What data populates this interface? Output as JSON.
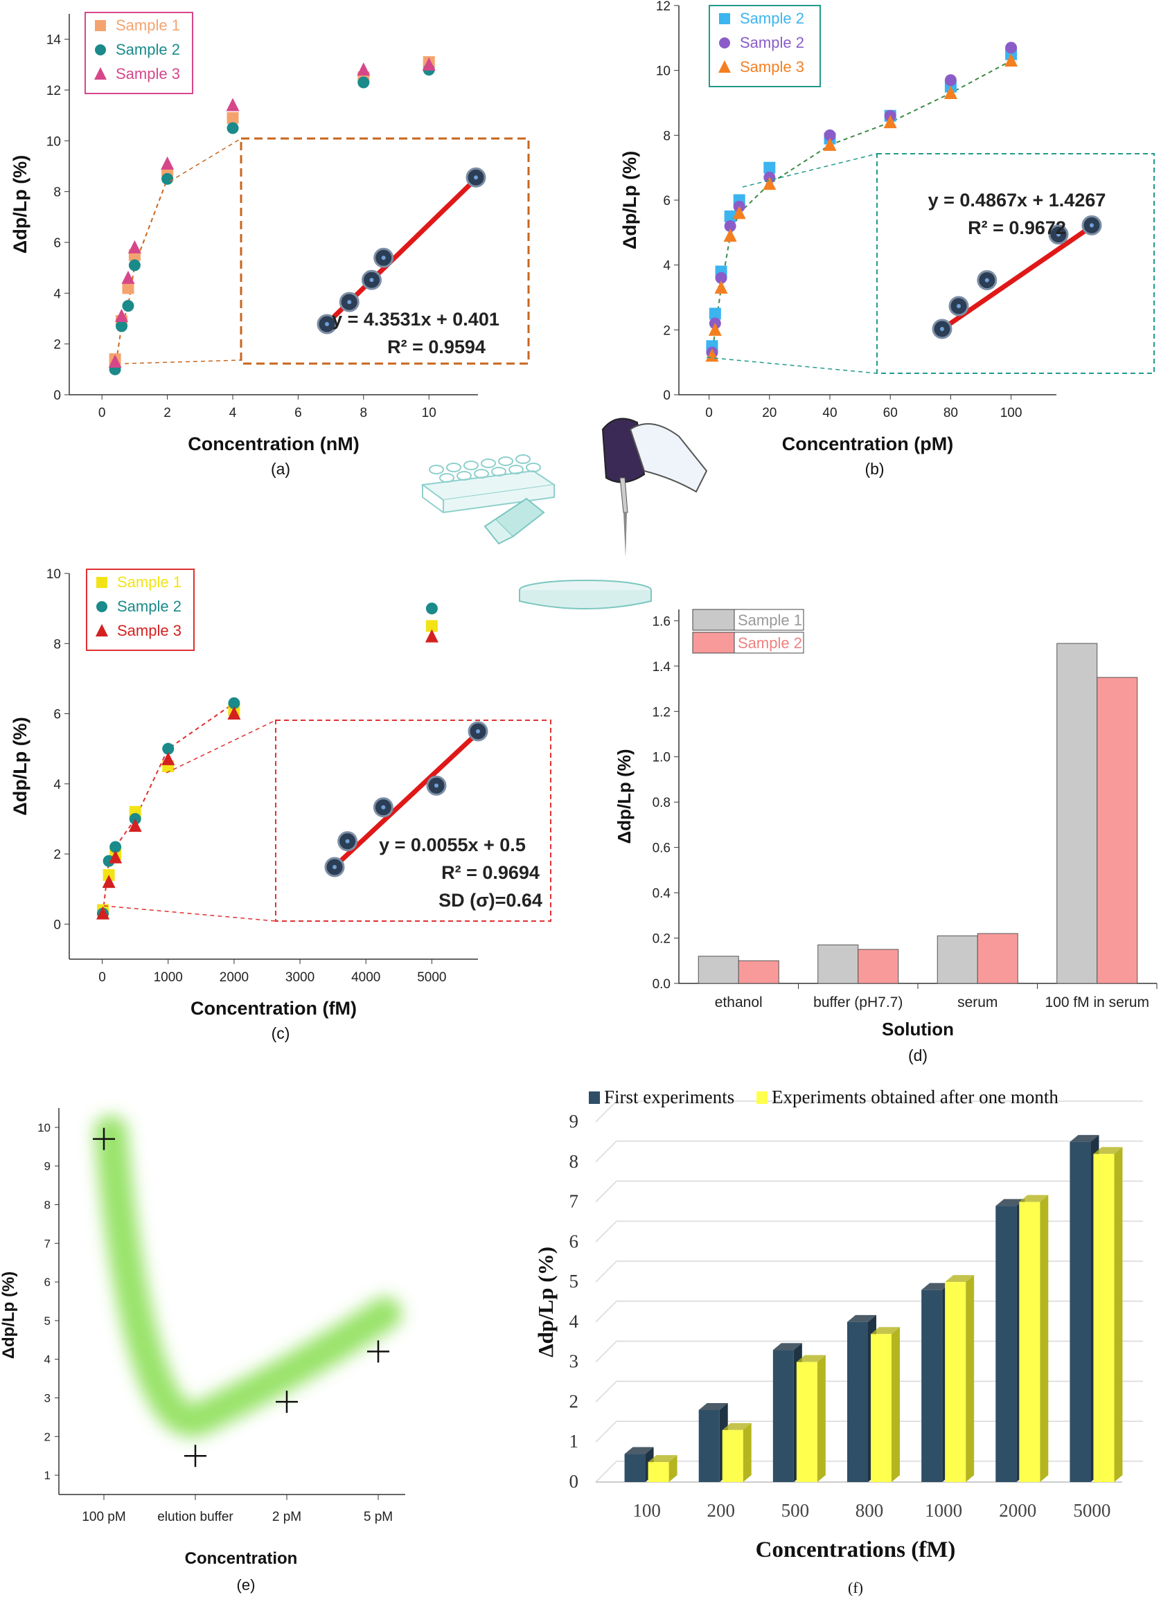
{
  "chart_data": [
    {
      "id": "a",
      "type": "scatter",
      "caption": "(a)",
      "xlabel": "Concentration (nM)",
      "ylabel": "Δdp/Lp (%)",
      "xlim": [
        -1,
        11.5
      ],
      "ylim": [
        0,
        15
      ],
      "xticks": [
        0,
        2,
        4,
        6,
        8,
        10
      ],
      "yticks": [
        0,
        2,
        4,
        6,
        8,
        10,
        12,
        14
      ],
      "series": [
        {
          "name": "Sample 1",
          "color": "#f4a36f",
          "marker": "square",
          "x": [
            0.4,
            0.6,
            0.8,
            1.0,
            2.0,
            4.0,
            8.0,
            10.0
          ],
          "y": [
            1.4,
            2.9,
            4.2,
            5.5,
            8.7,
            10.9,
            12.5,
            13.1
          ]
        },
        {
          "name": "Sample 2",
          "color": "#1a8a8a",
          "marker": "circle",
          "x": [
            0.4,
            0.6,
            0.8,
            1.0,
            2.0,
            4.0,
            8.0,
            10.0
          ],
          "y": [
            1.0,
            2.7,
            3.5,
            5.1,
            8.5,
            10.5,
            12.3,
            12.8
          ]
        },
        {
          "name": "Sample 3",
          "color": "#d6478a",
          "marker": "triangle",
          "x": [
            0.4,
            0.6,
            0.8,
            1.0,
            2.0,
            4.0,
            8.0,
            10.0
          ],
          "y": [
            1.3,
            3.1,
            4.6,
            5.8,
            9.1,
            11.4,
            12.8,
            13.0
          ]
        }
      ],
      "inset": {
        "equation": "y = 4.3531x + 0.401",
        "r2": "R² = 0.9594",
        "points": [
          [
            0,
            0
          ],
          [
            0.15,
            0.11
          ],
          [
            0.3,
            0.22
          ],
          [
            0.38,
            0.33
          ],
          [
            1.0,
            0.73
          ]
        ]
      },
      "accent": "#c8661e"
    },
    {
      "id": "b",
      "type": "scatter",
      "caption": "(b)",
      "xlabel": "Concentration (pM)",
      "ylabel": "Δdp/Lp (%)",
      "xlim": [
        -10,
        115
      ],
      "ylim": [
        0,
        12
      ],
      "xticks": [
        0,
        20,
        40,
        60,
        80,
        100
      ],
      "yticks": [
        0,
        2,
        4,
        6,
        8,
        10,
        12
      ],
      "series": [
        {
          "name": "Sample 2",
          "color": "#3bb4f0",
          "marker": "square",
          "x": [
            1,
            2,
            4,
            7,
            10,
            20,
            40,
            60,
            80,
            100
          ],
          "y": [
            1.5,
            2.5,
            3.8,
            5.5,
            6.0,
            7.0,
            7.9,
            8.6,
            9.5,
            10.5
          ]
        },
        {
          "name": "Sample 2",
          "color": "#8a5cc8",
          "marker": "circle",
          "x": [
            1,
            2,
            4,
            7,
            10,
            20,
            40,
            60,
            80,
            100
          ],
          "y": [
            1.3,
            2.2,
            3.6,
            5.2,
            5.8,
            6.7,
            8.0,
            8.6,
            9.7,
            10.7
          ]
        },
        {
          "name": "Sample 3",
          "color": "#f47f20",
          "marker": "triangle",
          "x": [
            1,
            2,
            4,
            7,
            10,
            20,
            40,
            60,
            80,
            100
          ],
          "y": [
            1.2,
            2.0,
            3.3,
            4.9,
            5.6,
            6.5,
            7.7,
            8.4,
            9.3,
            10.3
          ]
        }
      ],
      "inset": {
        "equation": "y = 0.4867x + 1.4267",
        "r2": "R² = 0.9672",
        "points": [
          [
            0,
            0
          ],
          [
            0.1,
            0.15
          ],
          [
            0.27,
            0.32
          ],
          [
            0.7,
            0.62
          ],
          [
            0.9,
            0.68
          ]
        ]
      },
      "accent": "#1f9a8a"
    },
    {
      "id": "c",
      "type": "scatter",
      "caption": "(c)",
      "xlabel": "Concentration (fM)",
      "ylabel": "Δdp/Lp (%)",
      "xlim": [
        -500,
        5700
      ],
      "ylim": [
        -1,
        10
      ],
      "xticks": [
        0,
        1000,
        2000,
        3000,
        4000,
        5000
      ],
      "yticks": [
        0,
        2,
        4,
        6,
        8,
        10
      ],
      "series": [
        {
          "name": "Sample 1",
          "color": "#f2e316",
          "marker": "square",
          "x": [
            10,
            100,
            200,
            500,
            1000,
            2000,
            5000
          ],
          "y": [
            0.4,
            1.4,
            2.0,
            3.2,
            4.5,
            6.1,
            8.5
          ]
        },
        {
          "name": "Sample 2",
          "color": "#1a8a8a",
          "marker": "circle",
          "x": [
            10,
            100,
            200,
            500,
            1000,
            2000,
            5000
          ],
          "y": [
            0.3,
            1.8,
            2.2,
            3.0,
            5.0,
            6.3,
            9.0
          ]
        },
        {
          "name": "Sample 3",
          "color": "#d42020",
          "marker": "triangle",
          "x": [
            10,
            100,
            200,
            500,
            1000,
            2000,
            5000
          ],
          "y": [
            0.3,
            1.2,
            1.9,
            2.8,
            4.7,
            6.0,
            8.2
          ]
        }
      ],
      "inset": {
        "equation": "y = 0.0055x + 0.5",
        "r2": "R² = 0.9694",
        "sd": "SD (σ)=0.64",
        "points": [
          [
            0,
            0
          ],
          [
            0.09,
            0.19
          ],
          [
            0.34,
            0.44
          ],
          [
            0.71,
            0.6
          ],
          [
            1.0,
            1.0
          ]
        ]
      },
      "accent": "#e03030"
    },
    {
      "id": "d",
      "type": "bar",
      "caption": "(d)",
      "xlabel": "Solution",
      "ylabel": "Δdp/Lp (%)",
      "ylim": [
        0,
        1.65
      ],
      "yticks": [
        0.0,
        0.2,
        0.4,
        0.6,
        0.8,
        1.0,
        1.2,
        1.4,
        1.6
      ],
      "categories": [
        "ethanol",
        "buffer (pH7.7)",
        "serum",
        "100 fM in serum"
      ],
      "series": [
        {
          "name": "Sample 1",
          "color": "#c9c9c9",
          "values": [
            0.12,
            0.17,
            0.21,
            1.5
          ]
        },
        {
          "name": "Sample 2",
          "color": "#f99a9a",
          "values": [
            0.1,
            0.15,
            0.22,
            1.35
          ]
        }
      ]
    },
    {
      "id": "e",
      "type": "scatter",
      "caption": "(e)",
      "xlabel": "Concentration",
      "ylabel": "Δdp/Lp (%)",
      "ylim": [
        0.5,
        10.5
      ],
      "yticks": [
        1,
        2,
        3,
        4,
        5,
        6,
        7,
        8,
        9,
        10
      ],
      "categories": [
        "100 pM",
        "elution buffer",
        "2 pM",
        "5 pM"
      ],
      "values": [
        9.7,
        1.5,
        2.9,
        4.2
      ],
      "trend_color": "#8ee05a"
    },
    {
      "id": "f",
      "type": "bar",
      "caption": "(f)",
      "xlabel": "Concentrations (fM)",
      "ylabel": "Δdp/Lp (%)",
      "ylim": [
        0,
        9
      ],
      "yticks": [
        0,
        1,
        2,
        3,
        4,
        5,
        6,
        7,
        8,
        9
      ],
      "categories": [
        "100",
        "200",
        "500",
        "800",
        "1000",
        "2000",
        "5000"
      ],
      "series": [
        {
          "name": "First experiments",
          "color": "#2f4f66",
          "values": [
            0.7,
            1.8,
            3.3,
            4.0,
            4.8,
            6.9,
            8.5
          ]
        },
        {
          "name": "Experiments obtained after one month",
          "color": "#ffff4d",
          "values": [
            0.5,
            1.3,
            3.0,
            3.7,
            5.0,
            7.0,
            8.2
          ]
        }
      ]
    }
  ]
}
